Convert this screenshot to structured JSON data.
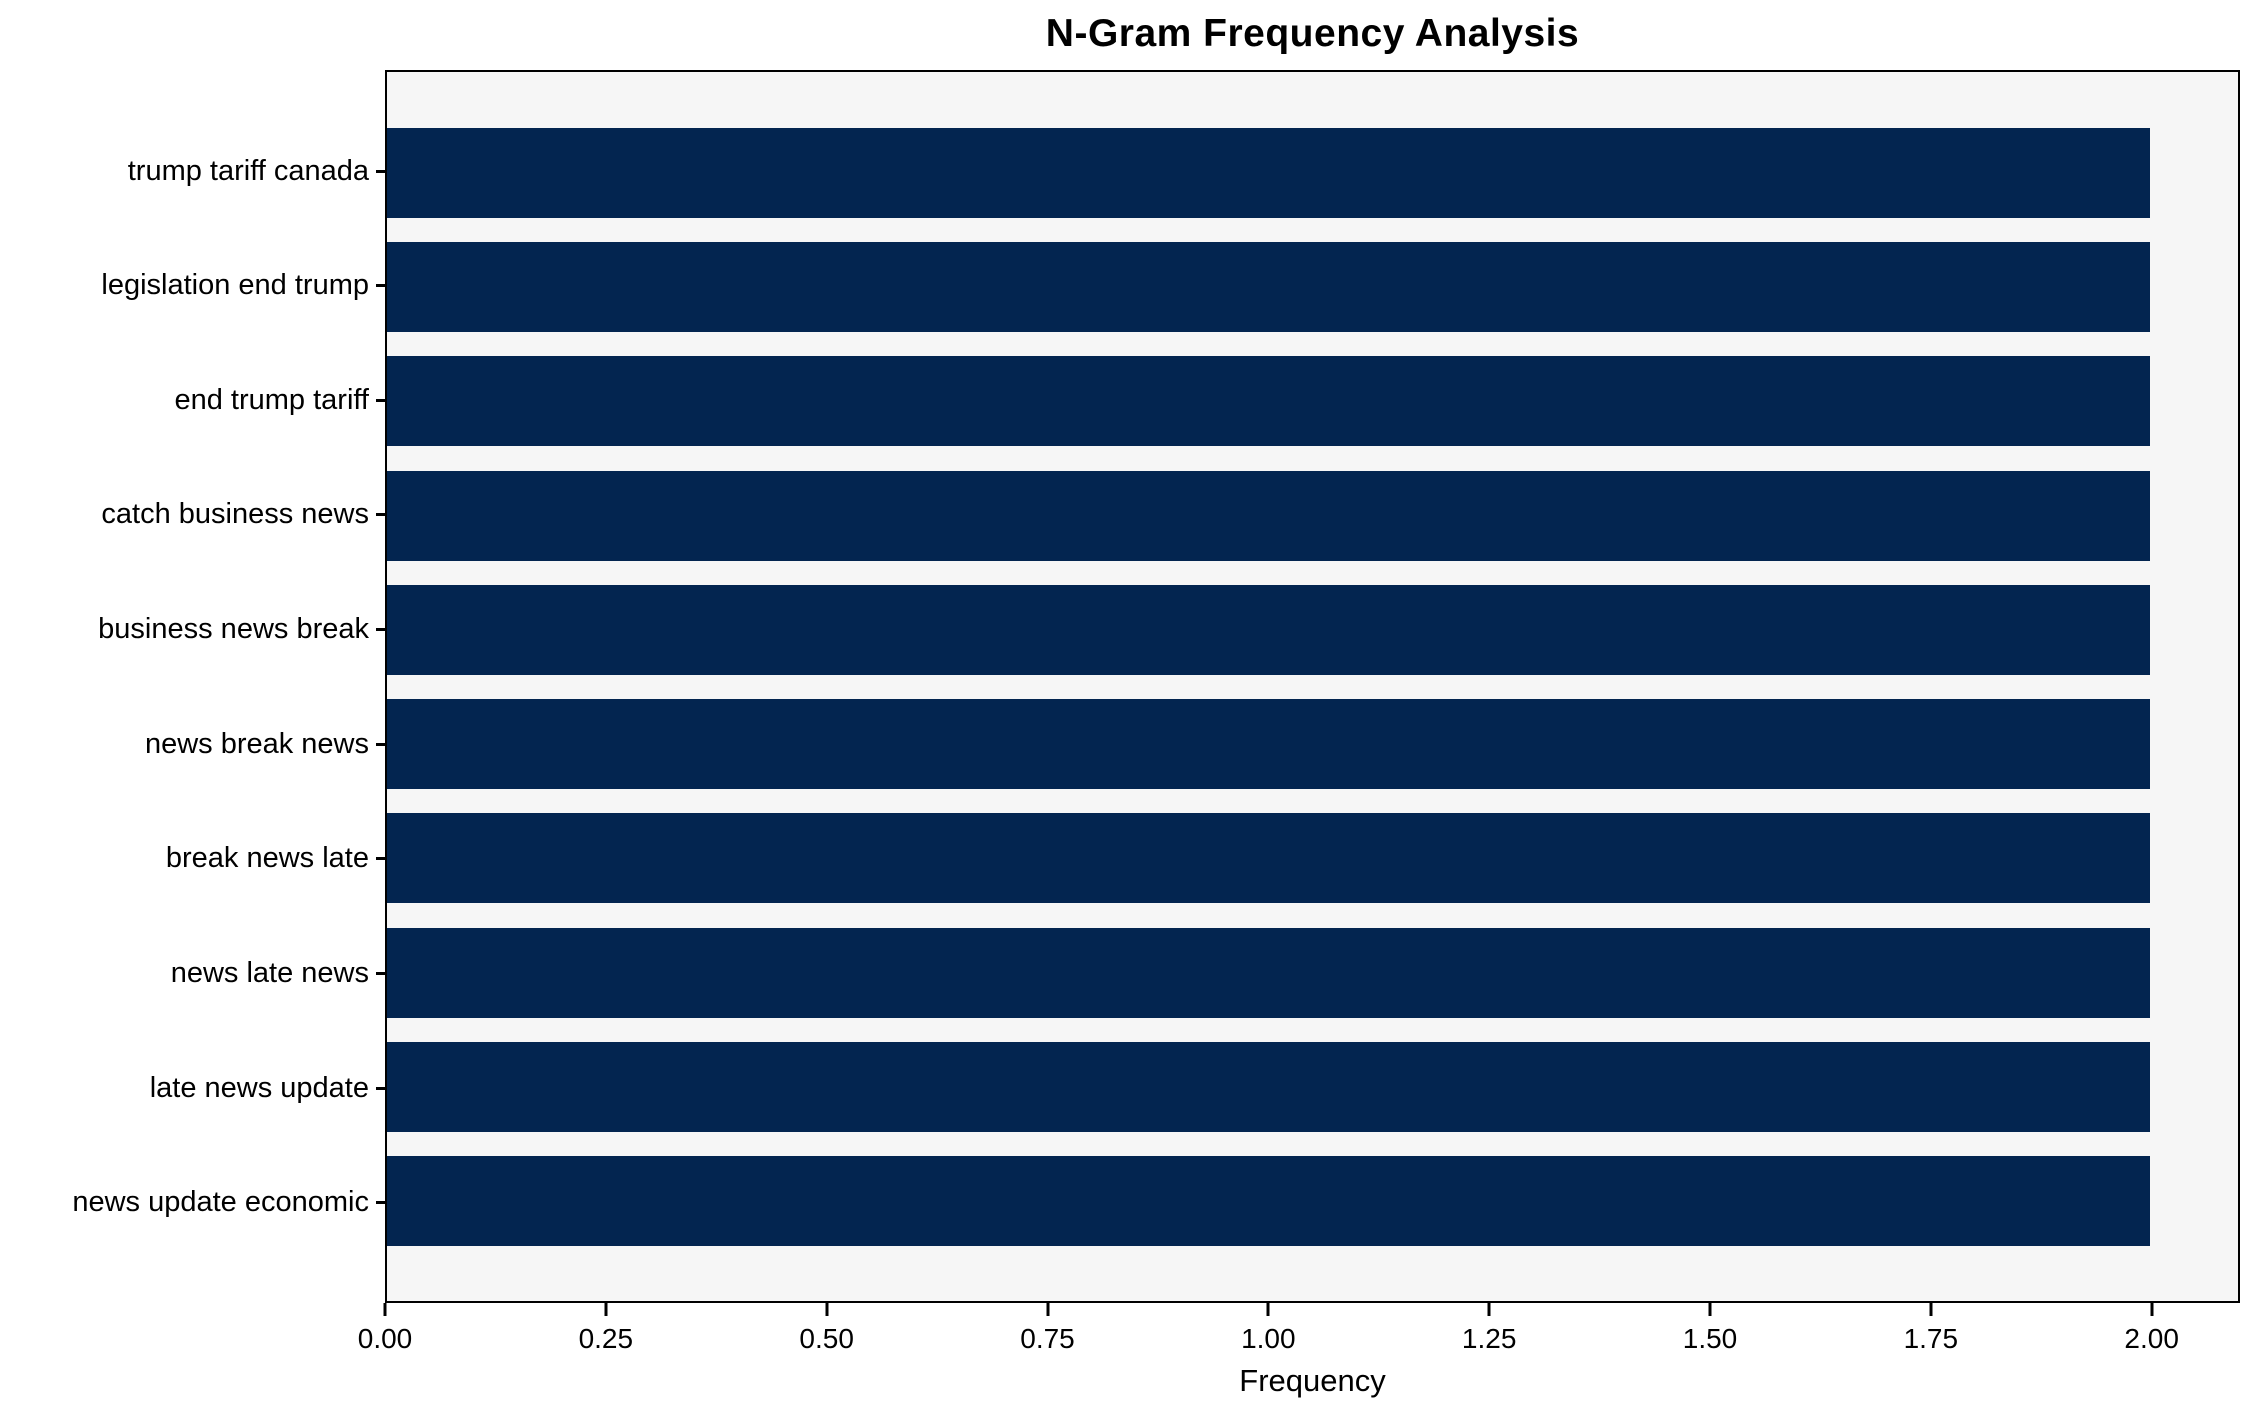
{
  "chart_data": {
    "type": "bar",
    "orientation": "horizontal",
    "title": "N-Gram Frequency Analysis",
    "xlabel": "Frequency",
    "ylabel": "",
    "categories": [
      "trump tariff canada",
      "legislation end trump",
      "end trump tariff",
      "catch business news",
      "business news break",
      "news break news",
      "break news late",
      "news late news",
      "late news update",
      "news update economic"
    ],
    "values": [
      2,
      2,
      2,
      2,
      2,
      2,
      2,
      2,
      2,
      2
    ],
    "xlim": [
      0,
      2.1
    ],
    "xticks": [
      0.0,
      0.25,
      0.5,
      0.75,
      1.0,
      1.25,
      1.5,
      1.75,
      2.0
    ],
    "xtick_labels": [
      "0.00",
      "0.25",
      "0.50",
      "0.75",
      "1.00",
      "1.25",
      "1.50",
      "1.75",
      "2.00"
    ],
    "grid": false,
    "legend": null,
    "colors": {
      "bar": "#032550",
      "plot_background": "#f6f6f6",
      "figure_background": "#ffffff",
      "frame": "#000000",
      "text": "#000000"
    }
  }
}
